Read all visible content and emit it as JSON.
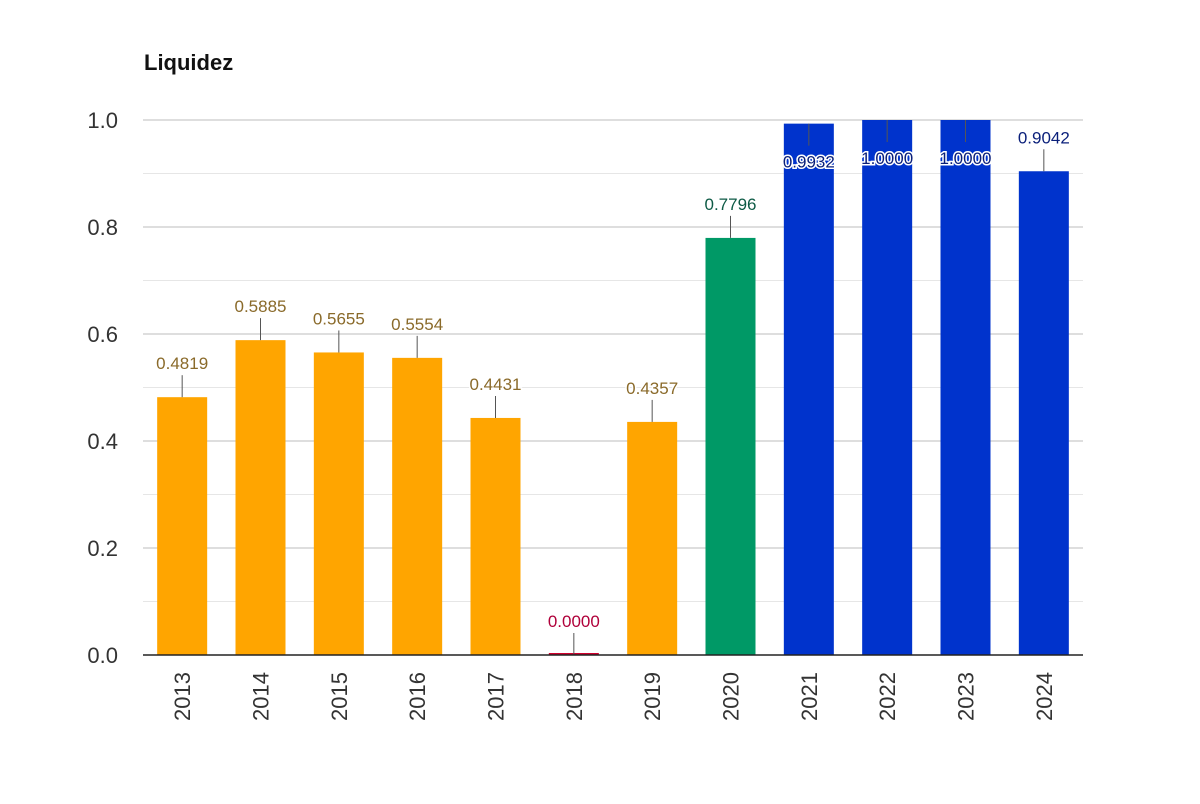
{
  "chart_data": {
    "type": "bar",
    "title": "Liquidez",
    "xlabel": "",
    "ylabel": "",
    "ylim": [
      0,
      1.0
    ],
    "y_ticks": [
      "0.0",
      "0.2",
      "0.4",
      "0.6",
      "0.8",
      "1.0"
    ],
    "grid": true,
    "categories": [
      "2013",
      "2014",
      "2015",
      "2016",
      "2017",
      "2018",
      "2019",
      "2020",
      "2021",
      "2022",
      "2023",
      "2024"
    ],
    "values": [
      0.4819,
      0.5885,
      0.5655,
      0.5554,
      0.4431,
      0.0,
      0.4357,
      0.7796,
      0.9932,
      1.0,
      1.0,
      0.9042
    ],
    "value_labels": [
      "0.4819",
      "0.5885",
      "0.5655",
      "0.5554",
      "0.4431",
      "0.0000",
      "0.4357",
      "0.7796",
      "0.9932",
      "1.0000",
      "1.0000",
      "0.9042"
    ],
    "bar_colors": [
      "#FFA500",
      "#FFA500",
      "#FFA500",
      "#FFA500",
      "#FFA500",
      "#D0002E",
      "#FFA500",
      "#009966",
      "#0033CC",
      "#0033CC",
      "#0033CC",
      "#0033CC"
    ],
    "label_colors": [
      "#8A6A2A",
      "#8A6A2A",
      "#8A6A2A",
      "#8A6A2A",
      "#8A6A2A",
      "#B0003A",
      "#8A6A2A",
      "#0D5A45",
      "#0A1F7A",
      "#0A1F7A",
      "#0A1F7A",
      "#0A1F7A"
    ]
  }
}
